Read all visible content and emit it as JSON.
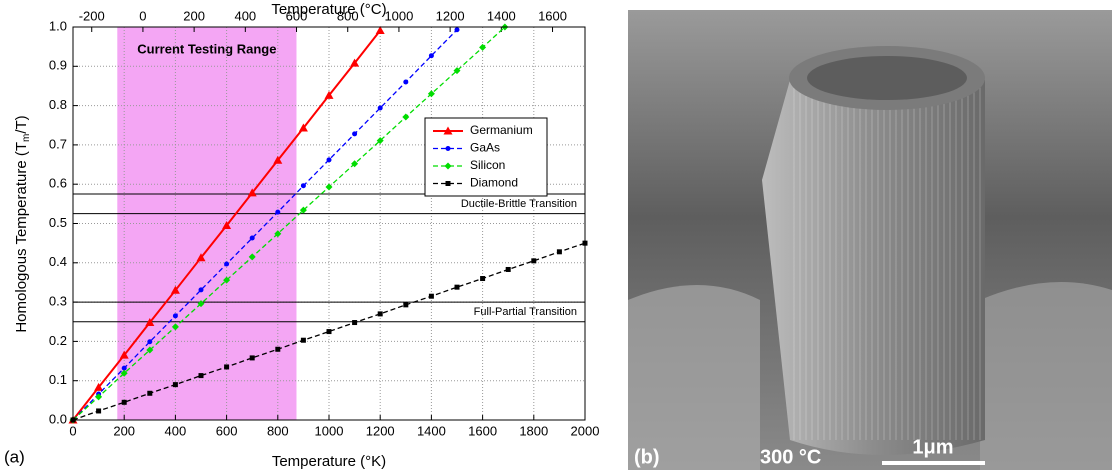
{
  "chart_data": {
    "type": "line",
    "xlabel": "Temperature (°K)",
    "x2label": "Temperature (°C)",
    "ylabel_parts": [
      "Homologous Temperature (T",
      "m",
      "/T)"
    ],
    "panel_a": "(a)",
    "xlim": [
      0,
      2000
    ],
    "xticks": [
      0,
      200,
      400,
      600,
      800,
      1000,
      1200,
      1400,
      1600,
      1800,
      2000
    ],
    "x2lim": [
      -273.15,
      1726.85
    ],
    "x2ticks": [
      -200,
      0,
      200,
      400,
      600,
      800,
      1000,
      1200,
      1400,
      1600
    ],
    "ylim": [
      0,
      1
    ],
    "yticks": [
      {
        "value": 0,
        "label": "0.0"
      },
      0.1,
      0.2,
      0.3,
      0.4,
      0.5,
      0.6,
      0.7,
      0.8,
      0.9,
      {
        "value": 1,
        "label": "1.0"
      }
    ],
    "grid": true,
    "shade": {
      "label": "Current Testing Range",
      "range": [
        173,
        873
      ],
      "color": "#f4a6f4"
    },
    "bands": [
      {
        "label": "Ductile-Brittle Transition",
        "y": [
          0.525,
          0.575
        ]
      },
      {
        "label": "Full-Partial Transition",
        "y": [
          0.25,
          0.3
        ]
      }
    ],
    "series": [
      {
        "name": "Germanium",
        "color": "#ff0000",
        "marker": "triangle",
        "dashed": false,
        "x": [
          0,
          100,
          200,
          300,
          400,
          500,
          600,
          700,
          800,
          900,
          1000,
          1100,
          1200
        ],
        "values": [
          0,
          0.083,
          0.165,
          0.248,
          0.33,
          0.413,
          0.495,
          0.578,
          0.661,
          0.743,
          0.826,
          0.908,
          0.991
        ]
      },
      {
        "name": "GaAs",
        "color": "#0000ff",
        "marker": "circle",
        "dashed": true,
        "x": [
          0,
          100,
          200,
          300,
          400,
          500,
          600,
          700,
          800,
          900,
          1000,
          1100,
          1200,
          1300,
          1400,
          1500
        ],
        "values": [
          0,
          0.066,
          0.132,
          0.199,
          0.265,
          0.331,
          0.397,
          0.463,
          0.529,
          0.596,
          0.662,
          0.728,
          0.794,
          0.86,
          0.927,
          0.993
        ]
      },
      {
        "name": "Silicon",
        "color": "#00dd00",
        "marker": "diamond",
        "dashed": true,
        "x": [
          0,
          100,
          200,
          300,
          400,
          500,
          600,
          700,
          800,
          900,
          1000,
          1100,
          1200,
          1300,
          1400,
          1500,
          1600,
          1687
        ],
        "values": [
          0,
          0.059,
          0.119,
          0.178,
          0.237,
          0.296,
          0.356,
          0.415,
          0.474,
          0.534,
          0.593,
          0.652,
          0.711,
          0.771,
          0.83,
          0.889,
          0.948,
          1.0
        ]
      },
      {
        "name": "Diamond",
        "color": "#000000",
        "marker": "square",
        "dashed": true,
        "x": [
          0,
          100,
          200,
          300,
          400,
          500,
          600,
          700,
          800,
          900,
          1000,
          1100,
          1200,
          1300,
          1400,
          1500,
          1600,
          1700,
          1800,
          1900,
          2000
        ],
        "values": [
          0,
          0.023,
          0.045,
          0.068,
          0.09,
          0.113,
          0.135,
          0.158,
          0.18,
          0.203,
          0.225,
          0.248,
          0.27,
          0.293,
          0.315,
          0.338,
          0.36,
          0.383,
          0.405,
          0.428,
          0.45
        ]
      }
    ],
    "photo": {
      "panel": "(b)",
      "temperature": "300 °C",
      "scale": "1μm"
    }
  }
}
